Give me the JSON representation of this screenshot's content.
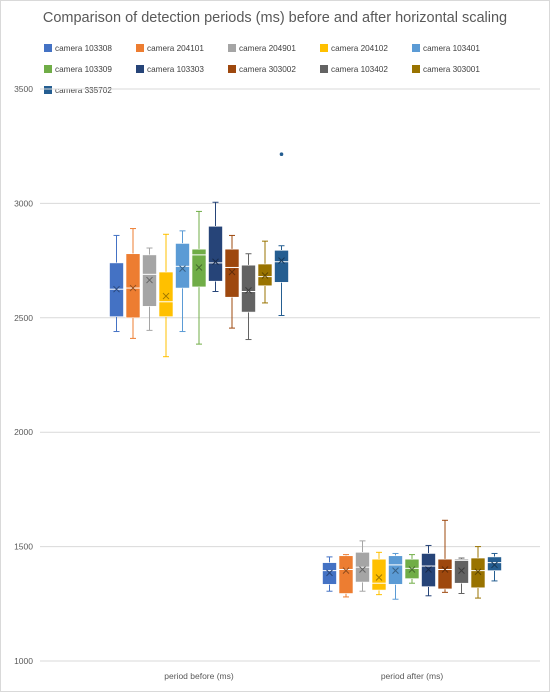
{
  "chart_data": {
    "type": "box",
    "title": "Comparison of detection periods (ms) before and after horizontal scaling",
    "xlabel": "",
    "ylabel": "",
    "ylim": [
      1000,
      3500
    ],
    "yticks": [
      "1000",
      "1500",
      "2000",
      "2500",
      "3000",
      "3500"
    ],
    "categories": [
      "period before (ms)",
      "period after (ms)"
    ],
    "grid": true,
    "legend_position": "top",
    "series": [
      {
        "name": "camera 103308",
        "color": "#4472c4",
        "boxes": [
          {
            "min": 2440,
            "q1": 2505,
            "median": 2625,
            "mean": 2625,
            "q3": 2740,
            "max": 2860,
            "outliers": []
          },
          {
            "min": 1305,
            "q1": 1335,
            "median": 1395,
            "mean": 1385,
            "q3": 1430,
            "max": 1455,
            "outliers": []
          }
        ]
      },
      {
        "name": "camera 204101",
        "color": "#ed7d31",
        "boxes": [
          {
            "min": 2410,
            "q1": 2500,
            "median": 2630,
            "mean": 2630,
            "q3": 2780,
            "max": 2890,
            "outliers": []
          },
          {
            "min": 1280,
            "q1": 1295,
            "median": 1400,
            "mean": 1395,
            "q3": 1460,
            "max": 1465,
            "outliers": []
          }
        ]
      },
      {
        "name": "camera 204901",
        "color": "#a5a5a5",
        "boxes": [
          {
            "min": 2445,
            "q1": 2550,
            "median": 2690,
            "mean": 2665,
            "q3": 2775,
            "max": 2805,
            "outliers": []
          },
          {
            "min": 1305,
            "q1": 1345,
            "median": 1410,
            "mean": 1400,
            "q3": 1475,
            "max": 1525,
            "outliers": []
          }
        ]
      },
      {
        "name": "camera 204102",
        "color": "#ffc000",
        "boxes": [
          {
            "min": 2330,
            "q1": 2505,
            "median": 2570,
            "mean": 2595,
            "q3": 2700,
            "max": 2865,
            "outliers": []
          },
          {
            "min": 1290,
            "q1": 1310,
            "median": 1340,
            "mean": 1365,
            "q3": 1445,
            "max": 1475,
            "outliers": []
          }
        ]
      },
      {
        "name": "camera 103401",
        "color": "#5b9bd5",
        "boxes": [
          {
            "min": 2440,
            "q1": 2630,
            "median": 2725,
            "mean": 2715,
            "q3": 2825,
            "max": 2880,
            "outliers": []
          },
          {
            "min": 1270,
            "q1": 1335,
            "median": 1420,
            "mean": 1395,
            "q3": 1460,
            "max": 1470,
            "outliers": []
          }
        ]
      },
      {
        "name": "camera 103309",
        "color": "#70ad47",
        "boxes": [
          {
            "min": 2385,
            "q1": 2635,
            "median": 2775,
            "mean": 2720,
            "q3": 2800,
            "max": 2965,
            "outliers": []
          },
          {
            "min": 1340,
            "q1": 1360,
            "median": 1405,
            "mean": 1400,
            "q3": 1445,
            "max": 1465,
            "outliers": []
          }
        ]
      },
      {
        "name": "camera 103303",
        "color": "#264478",
        "boxes": [
          {
            "min": 2615,
            "q1": 2660,
            "median": 2740,
            "mean": 2745,
            "q3": 2900,
            "max": 3005,
            "outliers": []
          },
          {
            "min": 1285,
            "q1": 1325,
            "median": 1415,
            "mean": 1400,
            "q3": 1470,
            "max": 1505,
            "outliers": []
          }
        ]
      },
      {
        "name": "camera 303002",
        "color": "#9e480e",
        "boxes": [
          {
            "min": 2455,
            "q1": 2590,
            "median": 2720,
            "mean": 2700,
            "q3": 2800,
            "max": 2860,
            "outliers": []
          },
          {
            "min": 1300,
            "q1": 1315,
            "median": 1400,
            "mean": 1400,
            "q3": 1445,
            "max": 1615,
            "outliers": []
          }
        ]
      },
      {
        "name": "camera 103402",
        "color": "#636363",
        "boxes": [
          {
            "min": 2405,
            "q1": 2525,
            "median": 2615,
            "mean": 2620,
            "q3": 2730,
            "max": 2780,
            "outliers": []
          },
          {
            "min": 1295,
            "q1": 1340,
            "median": 1440,
            "mean": 1395,
            "q3": 1445,
            "max": 1450,
            "outliers": []
          }
        ]
      },
      {
        "name": "camera 303001",
        "color": "#997300",
        "boxes": [
          {
            "min": 2565,
            "q1": 2640,
            "median": 2680,
            "mean": 2685,
            "q3": 2735,
            "max": 2835,
            "outliers": []
          },
          {
            "min": 1275,
            "q1": 1320,
            "median": 1395,
            "mean": 1390,
            "q3": 1450,
            "max": 1500,
            "outliers": []
          }
        ]
      },
      {
        "name": "camera 335702",
        "color": "#255e91",
        "boxes": [
          {
            "min": 2510,
            "q1": 2655,
            "median": 2745,
            "mean": 2750,
            "q3": 2795,
            "max": 2815,
            "outliers": [
              3215
            ]
          },
          {
            "min": 1350,
            "q1": 1395,
            "median": 1430,
            "mean": 1420,
            "q3": 1455,
            "max": 1470,
            "outliers": []
          }
        ]
      }
    ]
  }
}
